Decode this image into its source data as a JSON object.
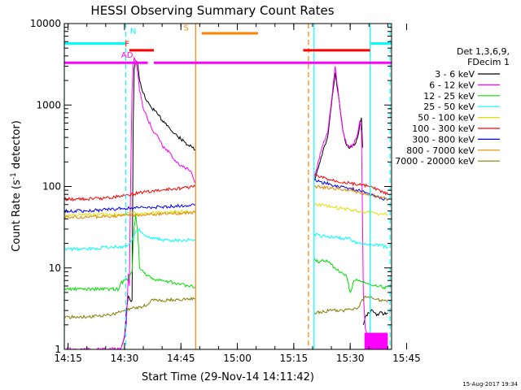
{
  "chart_data": {
    "type": "line",
    "title": "HESSI Observing Summary Count Rates",
    "xlabel": "Start Time (29-Nov-14 14:11:42)",
    "ylabel_main": "Count Rate (s",
    "ylabel_sup": "-1",
    "ylabel_tail": " detector",
    "ylabel_close": ")",
    "yscale": "log",
    "xlim_minutes": [
      14.0,
      101.0
    ],
    "ylim": [
      1,
      10000
    ],
    "x_ticks": [
      {
        "m": 15,
        "label": "14:15"
      },
      {
        "m": 30,
        "label": "14:30"
      },
      {
        "m": 45,
        "label": "14:45"
      },
      {
        "m": 60,
        "label": "15:00"
      },
      {
        "m": 75,
        "label": "15:15"
      },
      {
        "m": 90,
        "label": "15:30"
      },
      {
        "m": 105,
        "label": "15:45"
      }
    ],
    "y_ticks": [
      {
        "v": 1,
        "label": "1"
      },
      {
        "v": 10,
        "label": "10"
      },
      {
        "v": 100,
        "label": "100"
      },
      {
        "v": 1000,
        "label": "1000"
      },
      {
        "v": 10000,
        "label": "10000"
      }
    ],
    "legend_title_1": "Det 1,3,6,9,",
    "legend_title_2": "FDecim 1",
    "series": [
      {
        "name": "3 - 6 keV",
        "color": "#000000",
        "x": [
          29.2,
          30.0,
          30.5,
          31.0,
          31.5,
          32.0,
          32.3,
          32.6,
          33.0,
          33.5,
          34.0,
          35.0,
          36.0,
          37.0,
          38.0,
          39.0,
          40.0,
          41.0,
          42.0,
          43.0,
          44.0,
          45.0,
          46.0,
          47.0,
          48.0,
          48.8,
          null,
          80.5,
          81.0,
          82.0,
          83.0,
          84.0,
          85.0,
          86.0,
          87.0,
          88.0,
          89.0,
          90.0,
          91.0,
          92.0,
          92.6,
          93.0,
          93.3,
          null,
          93.5,
          94.0,
          95.0,
          96.0,
          97.0,
          98.0,
          99.0,
          100.0
        ],
        "y": [
          1.1,
          1.4,
          3.0,
          4.5,
          4.0,
          4.0,
          600,
          2800,
          3400,
          3200,
          2000,
          1400,
          1100,
          950,
          850,
          750,
          650,
          600,
          520,
          450,
          420,
          380,
          350,
          320,
          300,
          280,
          null,
          120,
          140,
          200,
          300,
          400,
          1000,
          2500,
          1200,
          500,
          320,
          300,
          320,
          400,
          600,
          700,
          300,
          null,
          2,
          2.5,
          2.8,
          3,
          2.6,
          2.9,
          2.7,
          2.8
        ]
      },
      {
        "name": "6 - 12 keV",
        "color": "#ff00ff",
        "x": [
          14.0,
          29.0,
          29.5,
          30.5,
          31.0,
          31.3,
          31.6,
          32.0,
          32.3,
          32.6,
          33.0,
          33.5,
          34.0,
          35.0,
          36.0,
          37.0,
          38.0,
          39.0,
          40.0,
          41.0,
          42.0,
          43.0,
          44.0,
          45.0,
          46.0,
          47.0,
          48.0,
          48.8,
          null,
          80.5,
          81.0,
          82.0,
          83.0,
          84.0,
          85.0,
          86.0,
          87.0,
          88.0,
          89.0,
          90.0,
          91.0,
          92.0,
          92.6,
          93.0,
          93.5,
          94.0,
          95.0,
          96.0,
          97.0,
          98.0,
          99.0,
          100.0
        ],
        "y": [
          1,
          1,
          1.2,
          2.0,
          8.5,
          6.0,
          80,
          1500,
          3000,
          3800,
          3500,
          2500,
          1500,
          900,
          700,
          550,
          450,
          400,
          320,
          280,
          260,
          220,
          200,
          180,
          170,
          160,
          140,
          110,
          null,
          130,
          160,
          250,
          360,
          450,
          1100,
          3000,
          1200,
          500,
          330,
          310,
          330,
          450,
          650,
          480,
          5,
          1.8,
          1.3,
          1.2,
          1.4,
          1.2,
          1.3,
          1.2
        ]
      },
      {
        "name": "12 - 25 keV",
        "color": "#00e000",
        "x": [
          14.0,
          28.5,
          29.0,
          30.0,
          31.0,
          32.0,
          32.5,
          33.0,
          33.5,
          34.0,
          35.0,
          36.0,
          37.0,
          38.0,
          39.0,
          40.0,
          41.0,
          42.0,
          43.0,
          44.0,
          45.0,
          46.0,
          47.0,
          48.0,
          48.8,
          null,
          80.5,
          81.0,
          82.0,
          83.0,
          84.0,
          85.0,
          86.0,
          87.0,
          88.0,
          89.0,
          90.0,
          91.0,
          92.0,
          93.0,
          94.0,
          95.0,
          96.0,
          97.0,
          98.0,
          99.0,
          100.0
        ],
        "y": [
          5.5,
          5.5,
          6.5,
          7.0,
          7.5,
          9.0,
          30,
          45,
          28,
          10,
          9.0,
          8.0,
          7.5,
          7.2,
          7.0,
          7.0,
          6.8,
          6.8,
          6.5,
          6.3,
          6.3,
          6.2,
          6.0,
          6.0,
          5.8,
          null,
          13,
          12,
          12,
          12,
          12,
          11,
          10,
          9,
          8.5,
          8.0,
          5.0,
          7.0,
          7.0,
          6.8,
          6.5,
          6.3,
          6.0,
          6.0,
          6.0,
          5.8,
          5.7
        ]
      },
      {
        "name": "25 - 50 keV",
        "color": "#00ffff",
        "x": [
          14.0,
          20.0,
          25.0,
          28.0,
          30.0,
          31.0,
          32.0,
          33.0,
          34.0,
          35.0,
          36.0,
          37.0,
          38.0,
          40.0,
          42.0,
          44.0,
          46.0,
          48.0,
          48.8,
          null,
          80.5,
          82.0,
          84.0,
          86.0,
          88.0,
          90.0,
          91.0,
          92.0,
          94.0,
          96.0,
          98.0,
          100.0
        ],
        "y": [
          17,
          17,
          18,
          18,
          18.5,
          19,
          22,
          28,
          30,
          26,
          24,
          23,
          23,
          22,
          22,
          22,
          22,
          22,
          22,
          null,
          26,
          25,
          24,
          24,
          23,
          23,
          21,
          20,
          20,
          19,
          19,
          18
        ]
      },
      {
        "name": "50 - 100 keV",
        "color": "#e0e000",
        "x": [
          14.0,
          20.0,
          25.0,
          30.0,
          35.0,
          40.0,
          45.0,
          48.8,
          null,
          80.5,
          85.0,
          90.0,
          95.0,
          100.0
        ],
        "y": [
          44,
          45,
          45,
          46,
          47,
          48,
          49,
          50,
          null,
          60,
          56,
          52,
          48,
          45
        ]
      },
      {
        "name": "100 - 300 keV",
        "color": "#ff0000",
        "x": [
          14.0,
          20.0,
          25.0,
          30.0,
          35.0,
          40.0,
          45.0,
          48.8,
          null,
          80.5,
          82.0,
          85.0,
          90.0,
          95.0,
          100.0
        ],
        "y": [
          70,
          70,
          72,
          78,
          85,
          90,
          95,
          100,
          null,
          140,
          130,
          120,
          110,
          100,
          80
        ]
      },
      {
        "name": "300 - 800 keV",
        "color": "#0000ff",
        "x": [
          14.0,
          20.0,
          25.0,
          30.0,
          35.0,
          40.0,
          45.0,
          48.8,
          null,
          80.5,
          85.0,
          90.0,
          95.0,
          100.0
        ],
        "y": [
          50,
          50,
          52,
          54,
          55,
          56,
          58,
          60,
          null,
          120,
          105,
          95,
          82,
          68
        ]
      },
      {
        "name": "800 - 7000 keV",
        "color": "#e08800",
        "x": [
          14.0,
          20.0,
          25.0,
          30.0,
          35.0,
          40.0,
          45.0,
          48.8,
          null,
          80.5,
          85.0,
          90.0,
          95.0,
          100.0
        ],
        "y": [
          42,
          42,
          43,
          44,
          45,
          46,
          47,
          48,
          null,
          100,
          95,
          90,
          80,
          70
        ]
      },
      {
        "name": "7000 - 20000 keV",
        "color": "#808000",
        "x": [
          14.0,
          20.0,
          25.0,
          28.0,
          30.0,
          32.0,
          34.0,
          36.0,
          37.0,
          40.0,
          44.0,
          48.8,
          null,
          80.5,
          82.0,
          85.0,
          88.0,
          90.0,
          92.0,
          94.0,
          96.0,
          98.0,
          100.0
        ],
        "y": [
          2.5,
          2.5,
          2.6,
          2.8,
          3.0,
          3.2,
          3.3,
          3.5,
          4.0,
          4.0,
          4.1,
          4.2,
          null,
          2.8,
          2.9,
          3.0,
          3.0,
          3.1,
          3.2,
          4.5,
          4.2,
          4.0,
          3.8
        ]
      }
    ],
    "state_bars": [
      {
        "label": "N",
        "color": "#00ffff",
        "level": 5700,
        "label_m": 32.3,
        "label_level": 7500,
        "segments": [
          [
            14.0,
            30.3
          ],
          [
            95.5,
            101.0
          ]
        ]
      },
      {
        "label": "F",
        "color": "#ff0000",
        "level": 4700,
        "label_m": 30.7,
        "label_level": 5200,
        "segments": [
          [
            31.3,
            37.8
          ],
          [
            77.5,
            95.3
          ]
        ]
      },
      {
        "label": "AD",
        "color": "#ff00ff",
        "level": 3300,
        "label_m": 30.7,
        "label_level": 3800,
        "segments": [
          [
            14.0,
            36.2
          ],
          [
            37.8,
            101.0
          ]
        ]
      },
      {
        "label": "S",
        "color": "#ff8000",
        "level": 7600,
        "label_m": 46.4,
        "label_level": 8200,
        "segments": [
          [
            50.5,
            65.5
          ]
        ]
      }
    ],
    "vertical_markers": [
      {
        "m": 14.0,
        "color": "#00ffff",
        "style": "solid"
      },
      {
        "m": 30.3,
        "color": "#00ffff",
        "style": "dashed"
      },
      {
        "m": 48.9,
        "color": "#ff8000",
        "style": "solid"
      },
      {
        "m": 78.9,
        "color": "#ff8000",
        "style": "dashed"
      },
      {
        "m": 80.4,
        "color": "#00ffff",
        "style": "solid"
      },
      {
        "m": 95.3,
        "color": "#00ffff",
        "style": "solid"
      },
      {
        "m": 100.6,
        "color": "#00ffff",
        "style": "dashed"
      }
    ],
    "attenuator_block": {
      "color": "#ff00ff",
      "x_range": [
        93.8,
        100.0
      ],
      "y_range": [
        1.0,
        1.6
      ]
    },
    "axes_color": "#000000",
    "background": "#ffffff"
  },
  "footer_timestamp": "15-Aug-2017 19:34"
}
